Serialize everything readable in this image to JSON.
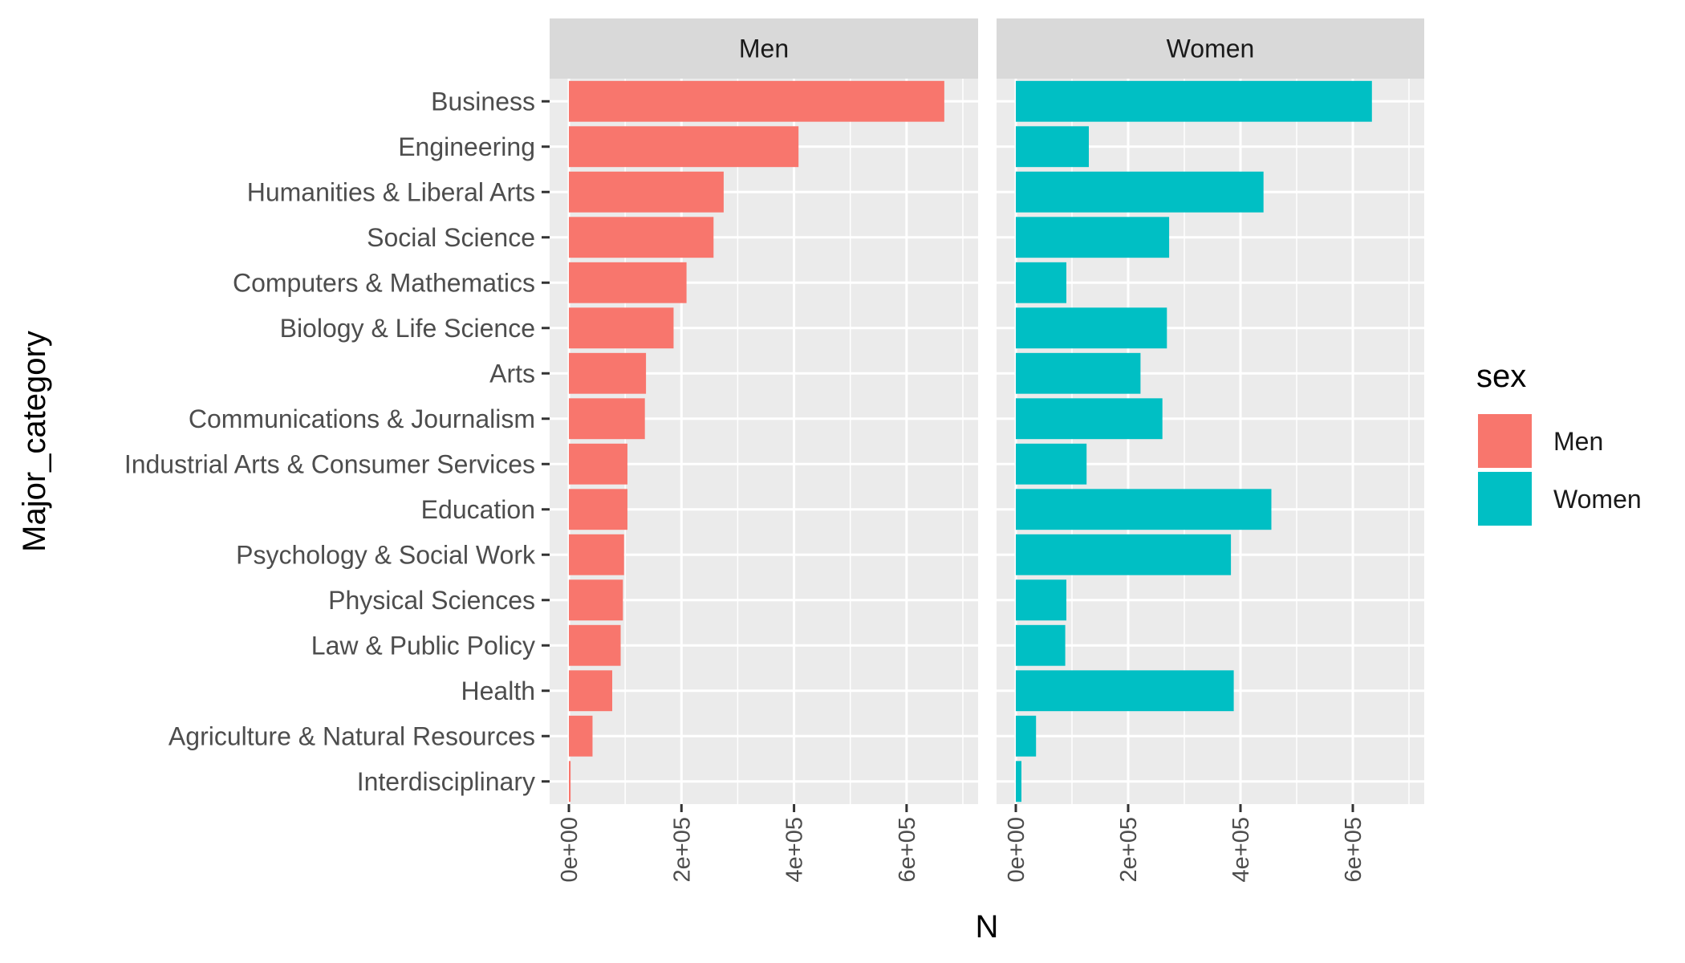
{
  "chart_data": {
    "type": "bar",
    "orientation": "horizontal",
    "facet_by": "sex",
    "xlabel": "N",
    "ylabel": "Major_category",
    "xlim": [
      0,
      690000
    ],
    "x_ticks": [
      0,
      200000,
      400000,
      600000
    ],
    "x_tick_labels": [
      "0e+00",
      "2e+05",
      "4e+05",
      "6e+05"
    ],
    "grid": true,
    "categories": [
      "Business",
      "Engineering",
      "Humanities & Liberal Arts",
      "Social Science",
      "Computers & Mathematics",
      "Biology & Life Science",
      "Arts",
      "Communications & Journalism",
      "Industrial Arts & Consumer Services",
      "Education",
      "Psychology & Social Work",
      "Physical Sciences",
      "Law & Public Policy",
      "Health",
      "Agriculture & Natural Resources",
      "Interdisciplinary"
    ],
    "series": [
      {
        "name": "Men",
        "color": "#F8766D",
        "values": [
          667000,
          408000,
          275000,
          257000,
          209000,
          186000,
          137000,
          135000,
          104000,
          104000,
          98000,
          96000,
          92000,
          77000,
          42000,
          3000
        ]
      },
      {
        "name": "Women",
        "color": "#00BFC4",
        "values": [
          634000,
          130000,
          441000,
          273000,
          90000,
          269000,
          222000,
          261000,
          126000,
          455000,
          383000,
          90000,
          88000,
          388000,
          36000,
          10000
        ]
      }
    ],
    "legend": {
      "title": "sex",
      "position": "right",
      "items": [
        "Men",
        "Women"
      ]
    }
  }
}
